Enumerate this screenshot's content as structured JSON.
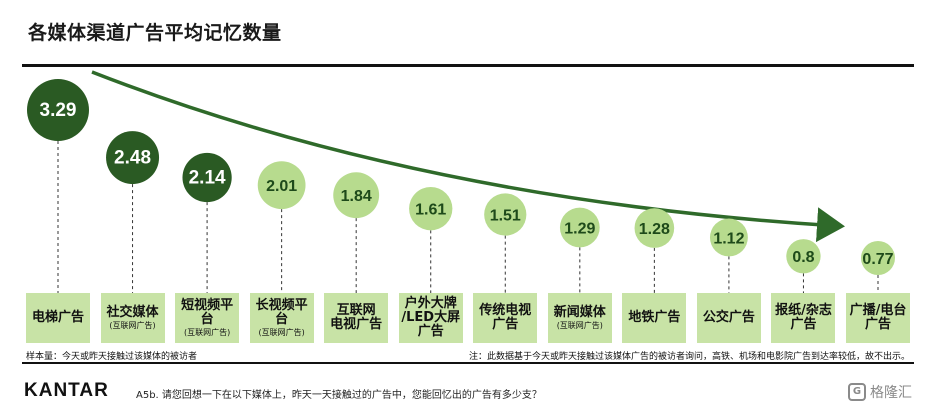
{
  "header": {
    "title": "各媒体渠道广告平均记忆数量"
  },
  "chart_data": {
    "type": "bubble",
    "title": "各媒体渠道广告平均记忆数量",
    "categories": [
      {
        "label": "电梯广告",
        "sub": ""
      },
      {
        "label": "社交媒体",
        "sub": "(互联网广告)"
      },
      {
        "label": "短视频平台",
        "sub": "(互联网广告)"
      },
      {
        "label": "长视频平台",
        "sub": "(互联网广告)"
      },
      {
        "label": "互联网\n电视广告",
        "sub": ""
      },
      {
        "label": "户外大牌\n/LED大屏\n广告",
        "sub": ""
      },
      {
        "label": "传统电视\n广告",
        "sub": ""
      },
      {
        "label": "新闻媒体",
        "sub": "(互联网广告)"
      },
      {
        "label": "地铁广告",
        "sub": ""
      },
      {
        "label": "公交广告",
        "sub": ""
      },
      {
        "label": "报纸/杂志\n广告",
        "sub": ""
      },
      {
        "label": "广播/电台\n广告",
        "sub": ""
      }
    ],
    "values": [
      3.29,
      2.48,
      2.14,
      2.01,
      1.84,
      1.61,
      1.51,
      1.29,
      1.28,
      1.12,
      0.8,
      0.77
    ],
    "value_labels": [
      "3.29",
      "2.48",
      "2.14",
      "2.01",
      "1.84",
      "1.61",
      "1.51",
      "1.29",
      "1.28",
      "1.12",
      "0.8",
      "0.77"
    ],
    "highlight_count": 3,
    "colors": {
      "dark": "#2a5a23",
      "light": "#b7db8e",
      "box": "#c8e3a6",
      "arrow": "#2f6a2a"
    }
  },
  "footer": {
    "sample": "样本量：今天或昨天接触过该媒体的被访者",
    "note": "注：此数据基于今天或昨天接触过该媒体广告的被访者询问，高铁、机场和电影院广告到达率较低，故不出示。",
    "logo": "KANTAR",
    "question": "A5b. 请您回想一下在以下媒体上，昨天一天接触过的广告中，您能回忆出的广告有多少支？",
    "watermark": "格隆汇",
    "watermark_icon": "G"
  }
}
